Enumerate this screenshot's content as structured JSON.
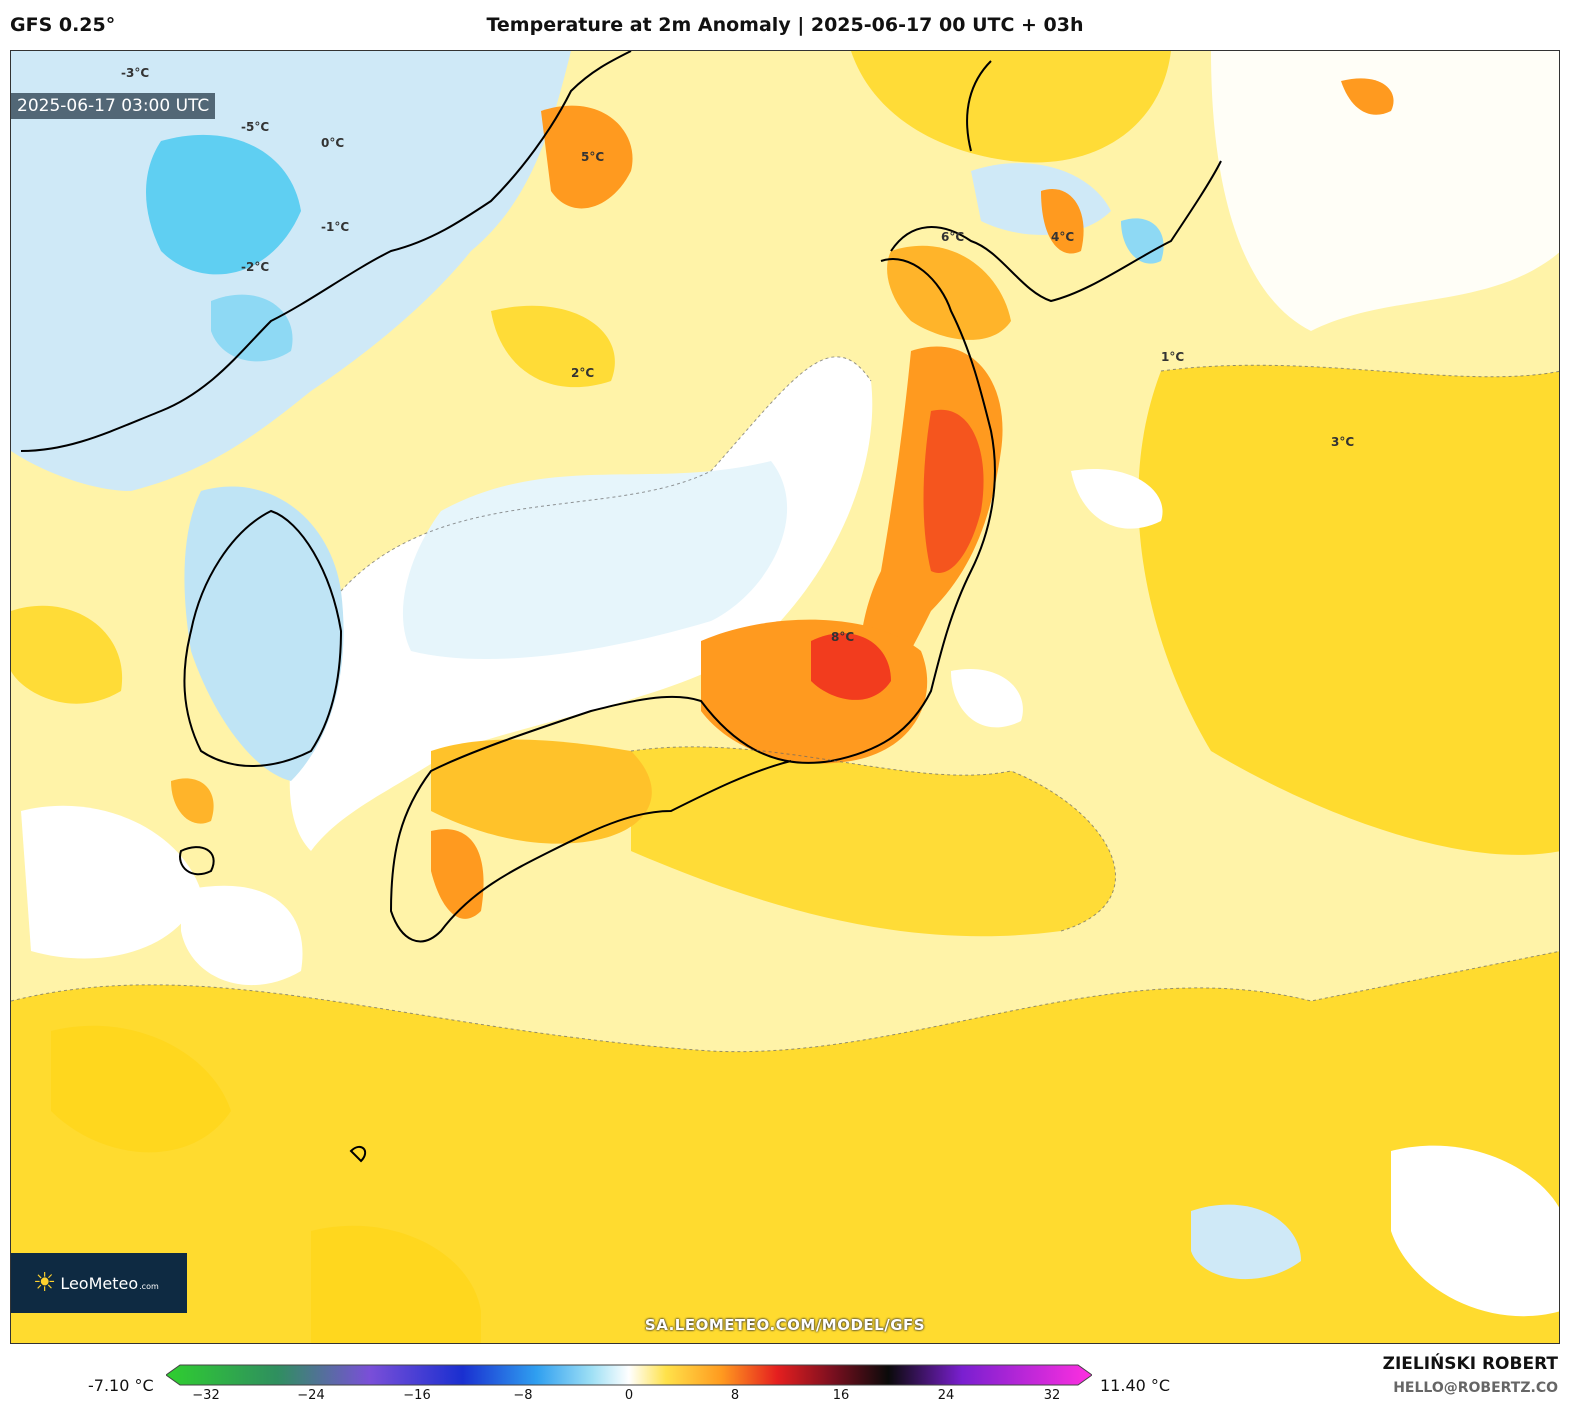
{
  "header": {
    "model": "GFS 0.25°",
    "title": "Temperature at 2m Anomaly | 2025-06-17 00 UTC + 03h"
  },
  "map": {
    "timestamp": "2025-06-17 03:00 UTC",
    "source_url": "SA.LEOMETEO.COM/MODEL/GFS",
    "logo_text": "LeoMeteo",
    "logo_domain": ".com",
    "contour_labels": [
      "-5°C",
      "-3°C",
      "-2°C",
      "-1°C",
      "0°C",
      "1°C",
      "2°C",
      "3°C",
      "4°C",
      "5°C",
      "6°C",
      "8°C"
    ]
  },
  "colorbar": {
    "min_label": "-7.10 °C",
    "max_label": "11.40 °C",
    "ticks": [
      "−32",
      "−24",
      "−16",
      "−8",
      "0",
      "8",
      "16",
      "24",
      "32"
    ],
    "range": [
      -32,
      32
    ]
  },
  "credits": {
    "author": "ZIELIŃSKI ROBERT",
    "email": "HELLO@ROBERTZ.CO"
  },
  "colors": {
    "cold_strong": "#33c4f0",
    "cold": "#bfe4f5",
    "neutral": "#ffffff",
    "warm_light": "#fff3a8",
    "warm": "#ffd61a",
    "hot": "#ff9a1f",
    "very_hot": "#f23c1e"
  }
}
